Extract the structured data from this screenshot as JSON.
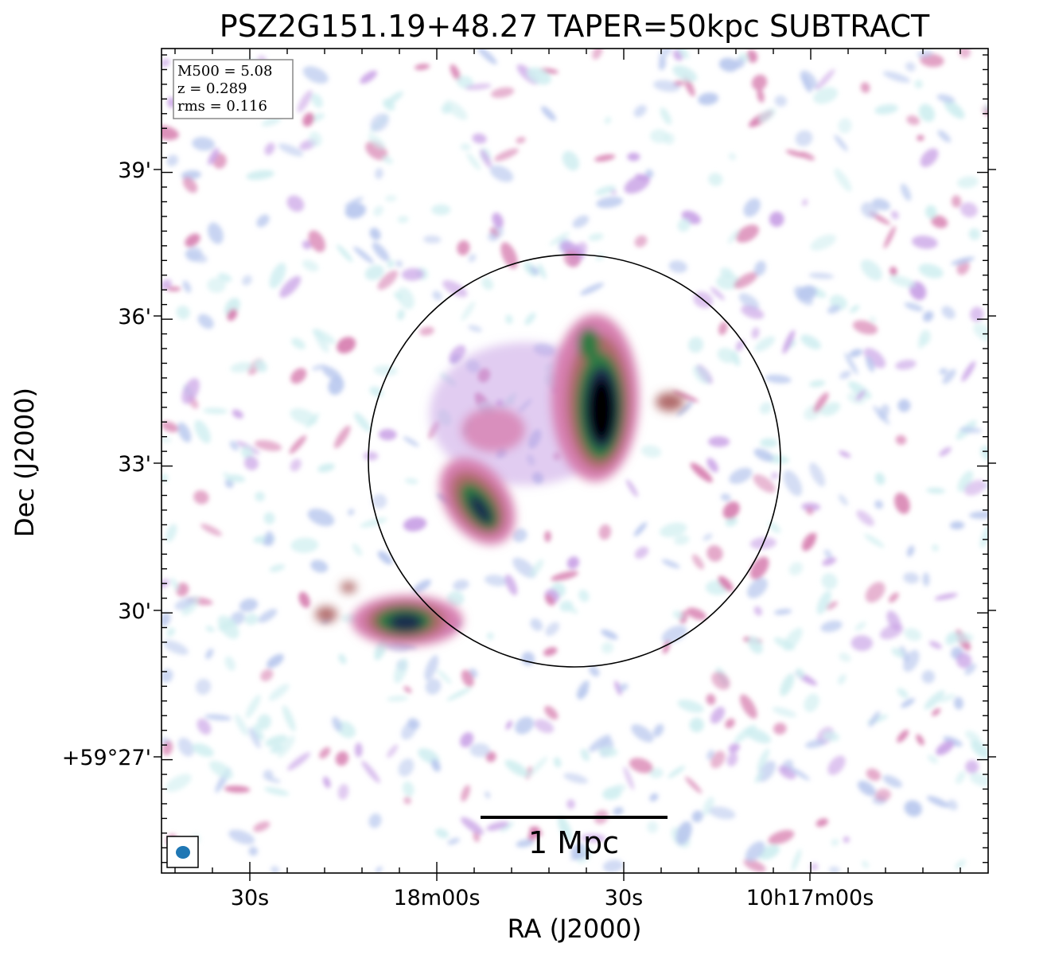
{
  "figure": {
    "title": "PSZ2G151.19+48.27 TAPER=50kpc SUBTRACT",
    "xlabel": "RA (J2000)",
    "ylabel": "Dec (J2000)",
    "x_ticks": [
      "30s",
      "18m00s",
      "30s",
      "10h17m00s"
    ],
    "y_ticks": [
      "39'",
      "36'",
      "33'",
      "30'",
      "+59°27'"
    ],
    "info_box": {
      "lines": [
        "M500 = 5.08",
        "z = 0.289",
        "rms = 0.116"
      ]
    },
    "scale_bar": {
      "label": "1 Mpc",
      "color": "#000000"
    },
    "beam": {
      "color": "#1f77b4"
    },
    "colormap": [
      "#ffffff",
      "#cfeef0",
      "#b9c8ee",
      "#c9a2e6",
      "#d77fb0",
      "#b06a6a",
      "#2f7a43",
      "#1c2b4e",
      "#000000"
    ],
    "sources": [
      {
        "name": "central-elongated-source",
        "peak": "black"
      },
      {
        "name": "southern-elongated-source",
        "peak": "navy"
      },
      {
        "name": "southwest-compact-source",
        "peak": "navy"
      }
    ]
  }
}
